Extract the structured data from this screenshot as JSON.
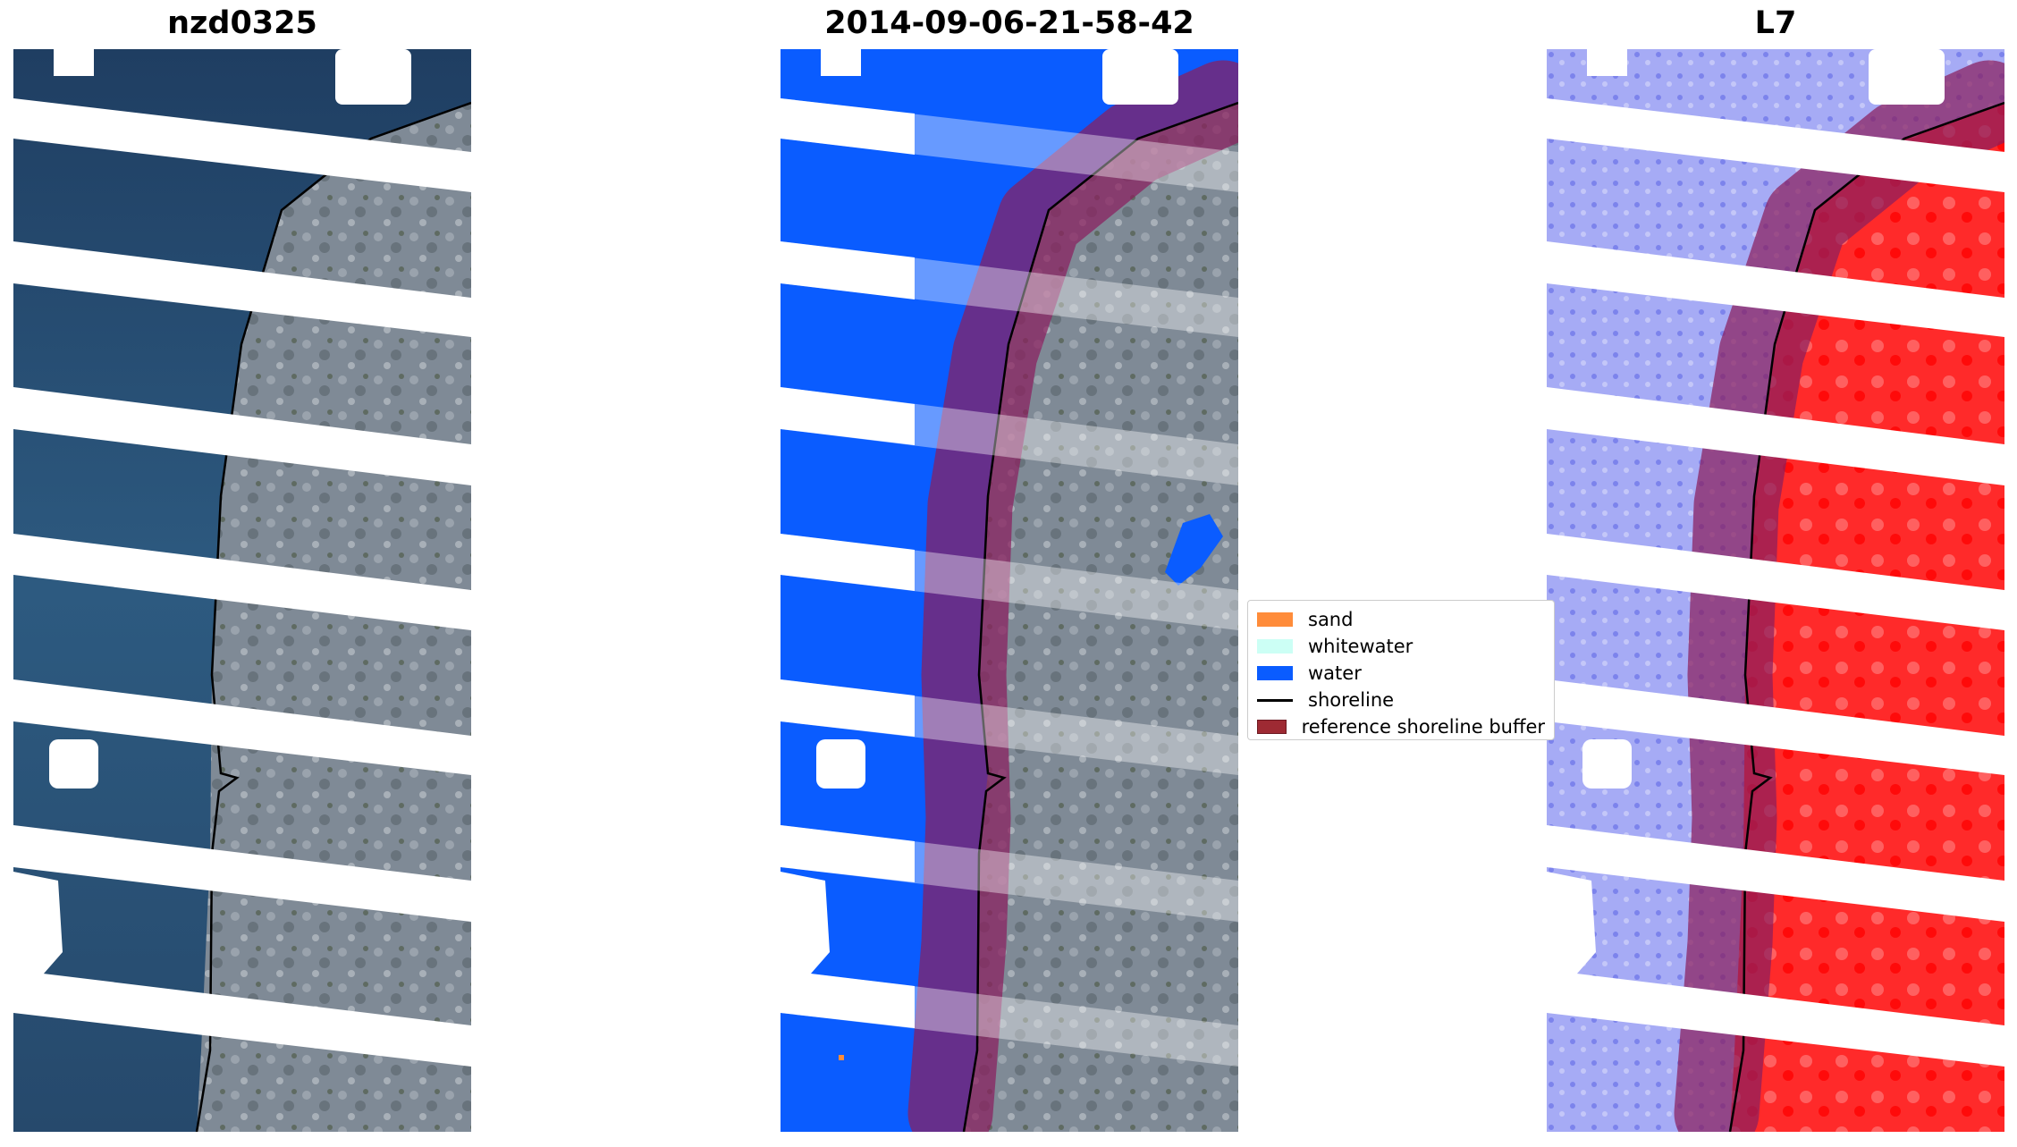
{
  "panels": [
    {
      "title": "nzd0325"
    },
    {
      "title": "2014-09-06-21-58-42"
    },
    {
      "title": "L7"
    }
  ],
  "legend": {
    "items": [
      {
        "label": "sand",
        "color": "#ff8c3a",
        "type": "patch"
      },
      {
        "label": "whitewater",
        "color": "#ccfff5",
        "type": "patch"
      },
      {
        "label": "water",
        "color": "#0a5cff",
        "type": "patch"
      },
      {
        "label": "shoreline",
        "color": "#000000",
        "type": "line"
      },
      {
        "label": "reference shoreline buffer",
        "color": "#9e2a33",
        "type": "patch"
      }
    ]
  },
  "colors": {
    "sea": "#2f5a80",
    "land": "#7f8a96",
    "classified_water": "#0a5cff",
    "buffer_overlay": "#8b1f5e",
    "index_negative": "#8f95f0",
    "index_positive": "#ff2020",
    "gap": "#ffffff"
  }
}
